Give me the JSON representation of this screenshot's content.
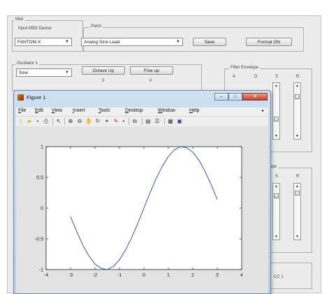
{
  "midi": {
    "group_label": "Midi",
    "device_label": "Input MIDI Device",
    "device_value": "FANTOM-X"
  },
  "patch": {
    "label": "Patch",
    "value": "Analog Sine Lead"
  },
  "buttons": {
    "save": "Save",
    "format": "Format ON"
  },
  "oscillator": {
    "group_label": "Oscillator 1",
    "wave_value": "Sine",
    "octave_up": "Octave Up",
    "fine_up": "Fine up",
    "octave_value": "0",
    "fine_value": "0"
  },
  "filter_env": {
    "group_label": "Filter Envelope",
    "labels": [
      "A",
      "D",
      "S",
      "R"
    ]
  },
  "amp_env": {
    "labels": [
      "S",
      "R"
    ],
    "partial_label": "ope"
  },
  "bottom_right": {
    "text": "CC 1"
  },
  "figure": {
    "title": "Figure 1",
    "menu": [
      {
        "u": "F",
        "rest": "ile"
      },
      {
        "u": "E",
        "rest": "dit"
      },
      {
        "u": "V",
        "rest": "iew"
      },
      {
        "u": "I",
        "rest": "nsert"
      },
      {
        "u": "T",
        "rest": "ools"
      },
      {
        "u": "D",
        "rest": "esktop"
      },
      {
        "u": "W",
        "rest": "indow"
      },
      {
        "u": "H",
        "rest": "elp"
      }
    ],
    "min_icon": "minimize-icon",
    "max_icon": "maximize-icon",
    "close_icon": "close-icon"
  },
  "chart_data": {
    "type": "line",
    "function": "sin(x)",
    "x": [
      -3.0,
      -2.75,
      -2.5,
      -2.25,
      -2.0,
      -1.75,
      -1.5,
      -1.25,
      -1.0,
      -0.75,
      -0.5,
      -0.25,
      0.0,
      0.25,
      0.5,
      0.75,
      1.0,
      1.25,
      1.5,
      1.75,
      2.0,
      2.25,
      2.5,
      2.75,
      3.0
    ],
    "y": [
      -0.14,
      -0.38,
      -0.6,
      -0.78,
      -0.91,
      -0.98,
      -1.0,
      -0.95,
      -0.84,
      -0.68,
      -0.48,
      -0.25,
      0.0,
      0.25,
      0.48,
      0.68,
      0.84,
      0.95,
      1.0,
      0.98,
      0.91,
      0.78,
      0.6,
      0.38,
      0.14
    ],
    "xlim": [
      -4,
      4
    ],
    "ylim": [
      -1,
      1
    ],
    "xticks": [
      "-4",
      "-3",
      "-2",
      "-1",
      "0",
      "1",
      "2",
      "3",
      "4"
    ],
    "yticks": [
      "1",
      "0.5",
      "0",
      "-0.5",
      "-1"
    ],
    "xlabel": "",
    "ylabel": "",
    "title": "",
    "grid": false,
    "line_color": "#3b55b0"
  }
}
